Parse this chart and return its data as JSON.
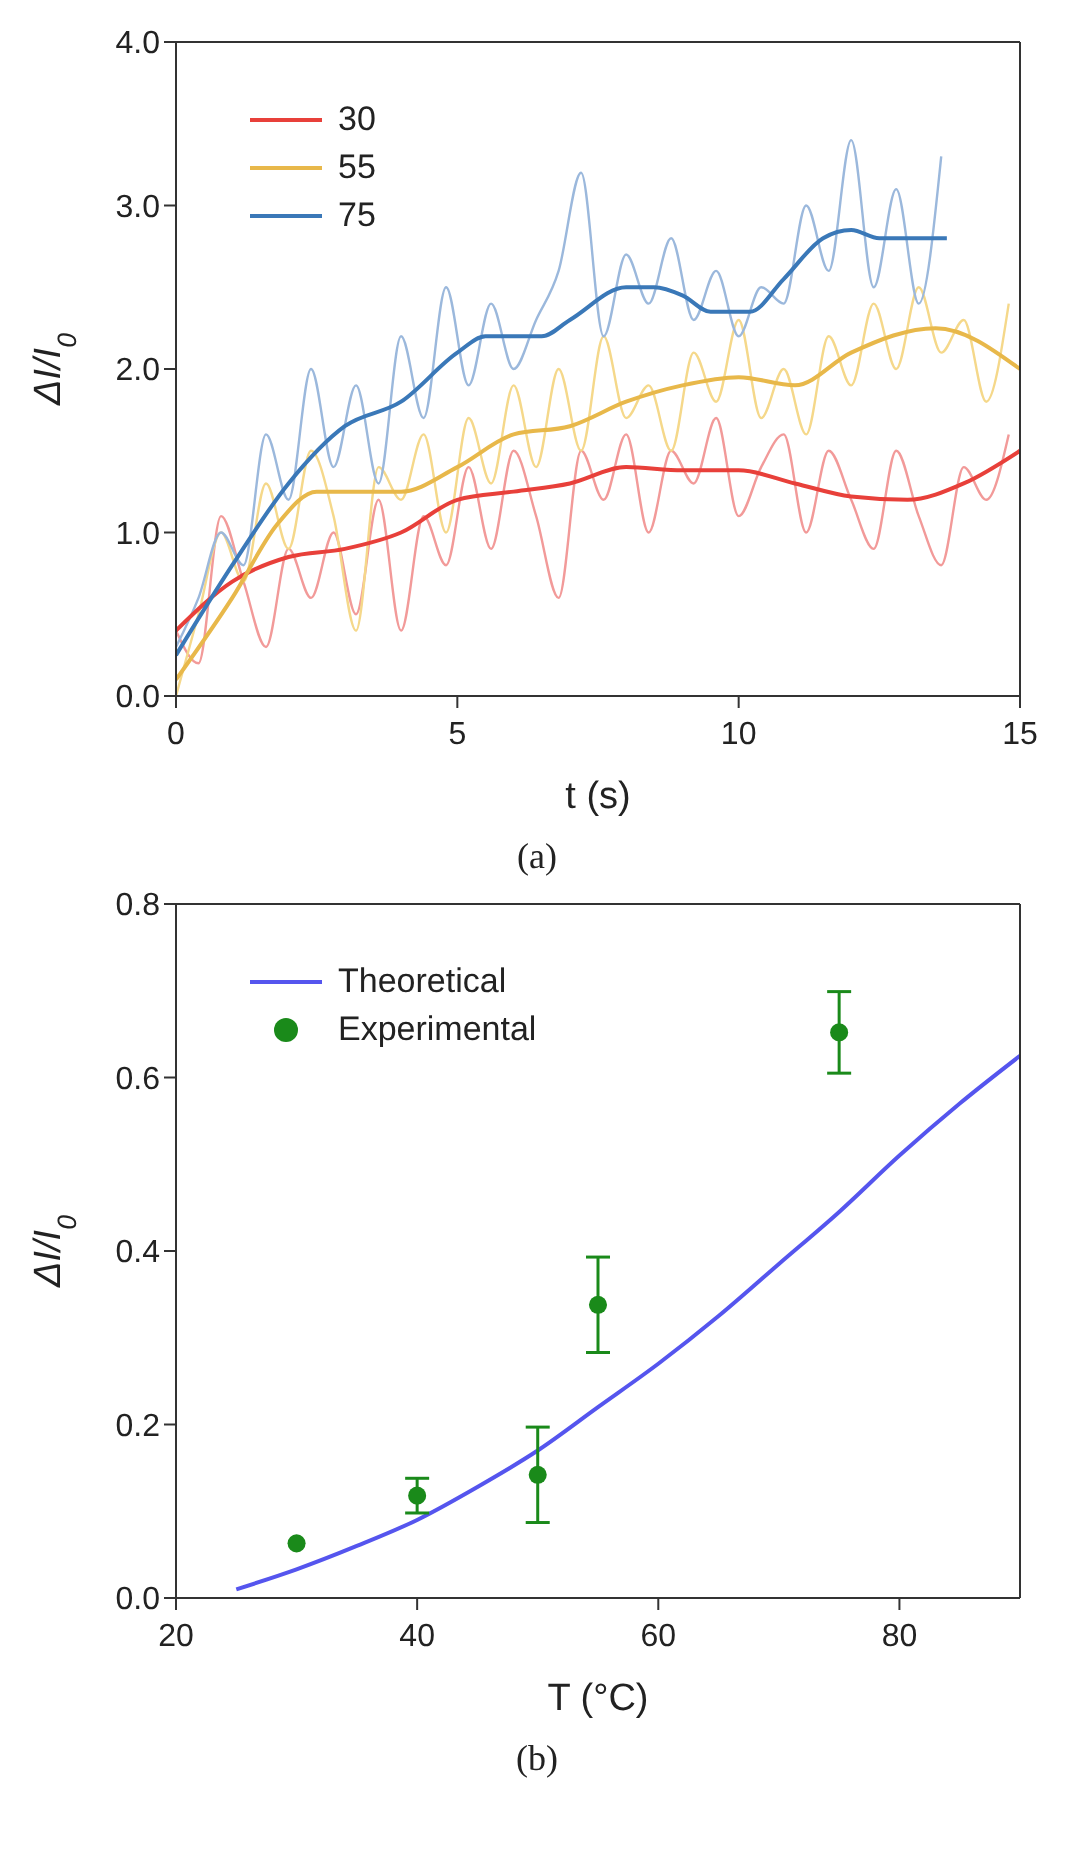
{
  "chart_data": [
    {
      "type": "line",
      "xlabel": "t (s)",
      "ylabel": "ΔI/I$_{0}$",
      "xlim": [
        0,
        15
      ],
      "xticks": [
        0,
        5,
        10,
        15
      ],
      "ylim": [
        0,
        4
      ],
      "yticks": [
        {
          "value": 0,
          "label": "0.0"
        },
        {
          "value": 1,
          "label": "1.0"
        },
        {
          "value": 2,
          "label": "2.0"
        },
        {
          "value": 3,
          "label": "3.0"
        },
        {
          "value": 4,
          "label": "4.0"
        }
      ],
      "grid": false,
      "legend": "top left",
      "marker": "none",
      "line_style": "solid",
      "annotations": [
        "(a)"
      ],
      "series": [
        {
          "color": "#f29a99",
          "x": [
            0,
            0.4,
            0.8,
            1.2,
            1.6,
            2,
            2.4,
            2.8,
            3.2,
            3.6,
            4,
            4.4,
            4.8,
            5.2,
            5.6,
            6,
            6.4,
            6.8,
            7.2,
            7.6,
            8,
            8.4,
            8.8,
            9.2,
            9.6,
            10,
            10.4,
            10.8,
            11.2,
            11.6,
            12,
            12.4,
            12.8,
            13.2,
            13.6,
            14,
            14.4,
            14.8
          ],
          "values": [
            0.4,
            0.2,
            1.1,
            0.7,
            0.3,
            0.9,
            0.6,
            1.0,
            0.5,
            1.2,
            0.4,
            1.1,
            0.8,
            1.4,
            0.9,
            1.5,
            1.1,
            0.6,
            1.5,
            1.2,
            1.6,
            1.0,
            1.5,
            1.3,
            1.7,
            1.1,
            1.4,
            1.6,
            1.0,
            1.5,
            1.2,
            0.9,
            1.5,
            1.1,
            0.8,
            1.4,
            1.2,
            1.6
          ]
        },
        {
          "color": "#f5d88a",
          "x": [
            0,
            0.4,
            0.8,
            1.2,
            1.6,
            2,
            2.4,
            2.8,
            3.2,
            3.6,
            4,
            4.4,
            4.8,
            5.2,
            5.6,
            6,
            6.4,
            6.8,
            7.2,
            7.6,
            8,
            8.4,
            8.8,
            9.2,
            9.6,
            10,
            10.4,
            10.8,
            11.2,
            11.6,
            12,
            12.4,
            12.8,
            13.2,
            13.6,
            14,
            14.4,
            14.8
          ],
          "values": [
            0.0,
            0.5,
            1.0,
            0.7,
            1.3,
            0.9,
            1.5,
            1.1,
            0.4,
            1.4,
            1.2,
            1.6,
            1.0,
            1.7,
            1.3,
            1.9,
            1.4,
            2.0,
            1.5,
            2.2,
            1.7,
            1.9,
            1.5,
            2.1,
            1.8,
            2.3,
            1.7,
            2.0,
            1.6,
            2.2,
            1.9,
            2.4,
            2.0,
            2.5,
            2.1,
            2.3,
            1.8,
            2.4
          ]
        },
        {
          "color": "#9bb8dc",
          "x": [
            0,
            0.4,
            0.8,
            1.2,
            1.6,
            2,
            2.4,
            2.8,
            3.2,
            3.6,
            4,
            4.4,
            4.8,
            5.2,
            5.6,
            6,
            6.4,
            6.8,
            7.2,
            7.6,
            8,
            8.4,
            8.8,
            9.2,
            9.6,
            10,
            10.4,
            10.8,
            11.2,
            11.6,
            12,
            12.4,
            12.8,
            13.2,
            13.6
          ],
          "values": [
            0.3,
            0.6,
            1.0,
            0.8,
            1.6,
            1.2,
            2.0,
            1.4,
            1.9,
            1.3,
            2.2,
            1.7,
            2.5,
            1.9,
            2.4,
            2.0,
            2.3,
            2.6,
            3.2,
            2.2,
            2.7,
            2.4,
            2.8,
            2.3,
            2.6,
            2.2,
            2.5,
            2.4,
            3.0,
            2.6,
            3.4,
            2.5,
            3.1,
            2.4,
            3.3
          ]
        },
        {
          "name": "30",
          "color": "#e8403a",
          "x": [
            0,
            1,
            2,
            3,
            4,
            5,
            6,
            7,
            8,
            9,
            10,
            11,
            12,
            13,
            14,
            15
          ],
          "values": [
            0.4,
            0.7,
            0.85,
            0.9,
            1.0,
            1.2,
            1.25,
            1.3,
            1.4,
            1.38,
            1.38,
            1.3,
            1.22,
            1.2,
            1.3,
            1.5
          ]
        },
        {
          "name": "55",
          "color": "#e8b84a",
          "x": [
            0,
            1,
            1.8,
            2.5,
            4,
            5,
            6,
            7,
            8,
            9,
            10,
            11,
            12,
            13.5,
            15
          ],
          "values": [
            0.1,
            0.6,
            1.05,
            1.25,
            1.25,
            1.4,
            1.6,
            1.65,
            1.8,
            1.9,
            1.95,
            1.9,
            2.1,
            2.25,
            2.0
          ]
        },
        {
          "name": "75",
          "color": "#3a78b8",
          "x": [
            0,
            1,
            2,
            3,
            4,
            5,
            5.5,
            6.5,
            7,
            8,
            8.5,
            9,
            9.5,
            10.2,
            10.8,
            11.5,
            12,
            12.5,
            13.7
          ],
          "values": [
            0.25,
            0.8,
            1.3,
            1.65,
            1.8,
            2.1,
            2.2,
            2.2,
            2.3,
            2.5,
            2.5,
            2.45,
            2.35,
            2.35,
            2.55,
            2.8,
            2.85,
            2.8,
            2.8
          ]
        }
      ]
    },
    {
      "type": "scatter",
      "xlabel": "T (°C)",
      "ylabel": "ΔI/I$_{0}$",
      "xlim": [
        20,
        90
      ],
      "xticks": [
        20,
        40,
        60,
        80
      ],
      "ylim": [
        0,
        0.8
      ],
      "yticks": [
        {
          "value": 0,
          "label": "0.0"
        },
        0.2,
        0.4,
        0.6,
        0.8
      ],
      "grid": false,
      "legend": "top left",
      "annotations": [
        "(b)"
      ],
      "series": [
        {
          "type": "line",
          "marker": "none",
          "name": "Theoretical",
          "color": "#5555ee",
          "x": [
            25,
            30,
            35,
            40,
            45,
            50,
            55,
            60,
            65,
            70,
            75,
            80,
            85,
            90
          ],
          "values": [
            0.01,
            0.033,
            0.06,
            0.09,
            0.128,
            0.17,
            0.22,
            0.27,
            0.325,
            0.385,
            0.445,
            0.51,
            0.57,
            0.625
          ]
        },
        {
          "marker": "circle",
          "name": "Experimental",
          "color": "#1a8a1a",
          "x": [
            30,
            40,
            50,
            55,
            75
          ],
          "values": [
            0.063,
            0.118,
            0.142,
            0.338,
            0.652
          ],
          "errors": [
            null,
            0.02,
            0.055,
            0.055,
            0.047
          ]
        }
      ]
    }
  ]
}
